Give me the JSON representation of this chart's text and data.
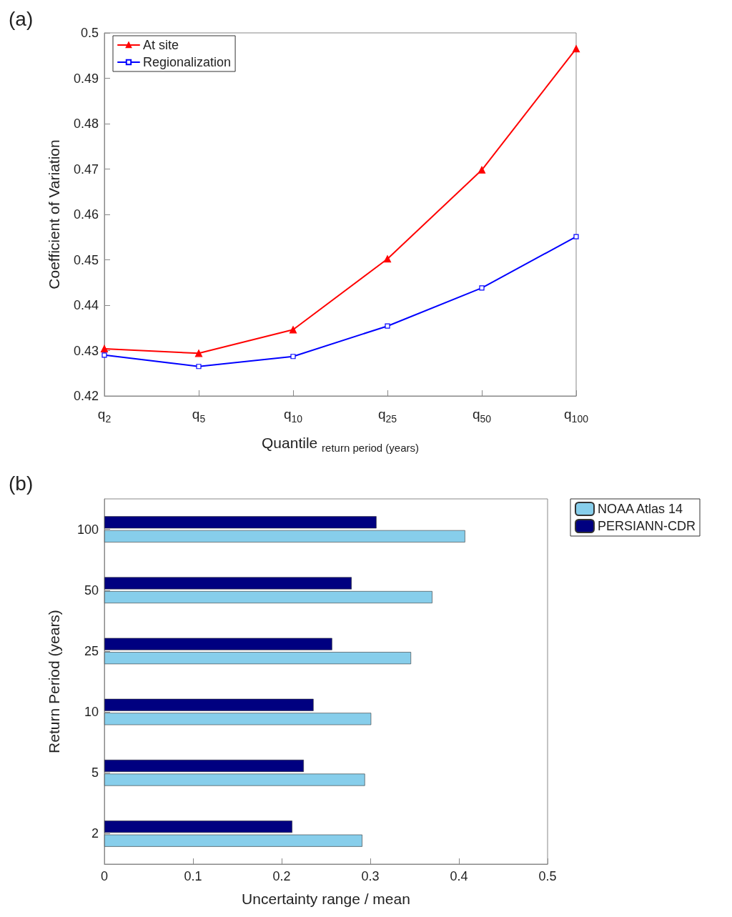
{
  "chart_data": [
    {
      "type": "line",
      "annotations": [
        "(a)"
      ],
      "xlabel": "Quantile $_{return period (years)}$",
      "ylabel": "Coefficient of Variation",
      "categories": [
        "q$_{2}$",
        "q$_{5}$",
        "q$_{10}$",
        "q$_{25}$",
        "q$_{50}$",
        "q$_{100}$"
      ],
      "series": [
        {
          "name": "At site",
          "color": "#ff0000",
          "marker": "triangle",
          "values": [
            0.4304,
            0.4294,
            0.4346,
            0.4502,
            0.4698,
            0.4965
          ]
        },
        {
          "name": "Regionalization",
          "color": "#0000ff",
          "marker": "square",
          "values": [
            0.429,
            0.4265,
            0.4287,
            0.4354,
            0.4438,
            0.4551
          ]
        }
      ],
      "ylim": [
        0.42,
        0.5
      ],
      "yticks": [
        0.42,
        0.43,
        0.44,
        0.45,
        0.46,
        0.47,
        0.48,
        0.49,
        0.5
      ],
      "grid": false,
      "legend": "top left",
      "line_style": "solid"
    },
    {
      "type": "bar",
      "orientation": "horizontal",
      "annotations": [
        "(b)"
      ],
      "xlabel": "Uncertainty range / mean",
      "ylabel": "Return Period (years)",
      "categories": [
        "100",
        "50",
        "25",
        "10",
        "5",
        "2"
      ],
      "series": [
        {
          "name": "NOAA Atlas 14",
          "color": "#87ceeb",
          "values": [
            0.407,
            0.37,
            0.346,
            0.301,
            0.294,
            0.291
          ]
        },
        {
          "name": "PERSIANN-CDR",
          "color": "#000080",
          "values": [
            0.307,
            0.279,
            0.257,
            0.236,
            0.225,
            0.212
          ]
        }
      ],
      "xlim": [
        0,
        0.5
      ],
      "xticks": [
        0,
        0.1,
        0.2,
        0.3,
        0.4,
        0.5
      ],
      "grid": false,
      "legend": "top right"
    }
  ]
}
